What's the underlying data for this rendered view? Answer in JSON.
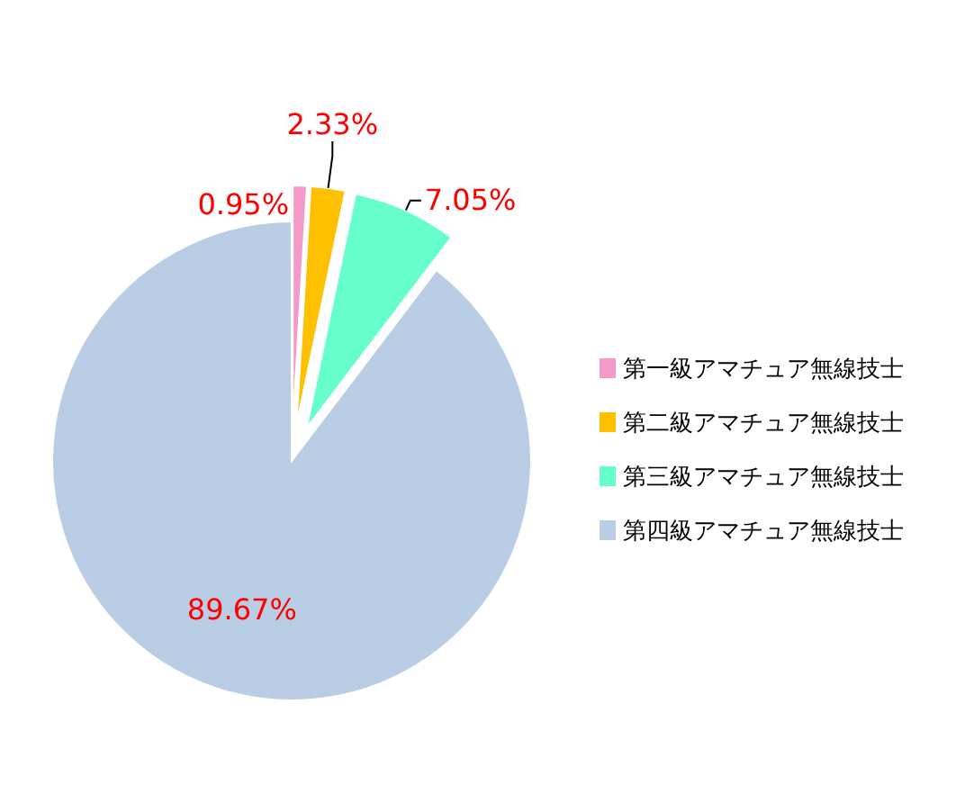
{
  "chart_data": {
    "type": "pie",
    "categories": [
      "第一級アマチュア無線技士",
      "第二級アマチュア無線技士",
      "第三級アマチュア無線技士",
      "第四級アマチュア無線技士"
    ],
    "values": [
      0.95,
      2.33,
      7.05,
      89.67
    ],
    "colors": [
      "#f49ac8",
      "#ffc000",
      "#66ffcc",
      "#b9cde5"
    ],
    "value_labels": [
      "0.95%",
      "2.33%",
      "7.05%",
      "89.67%"
    ],
    "legend": "right"
  }
}
